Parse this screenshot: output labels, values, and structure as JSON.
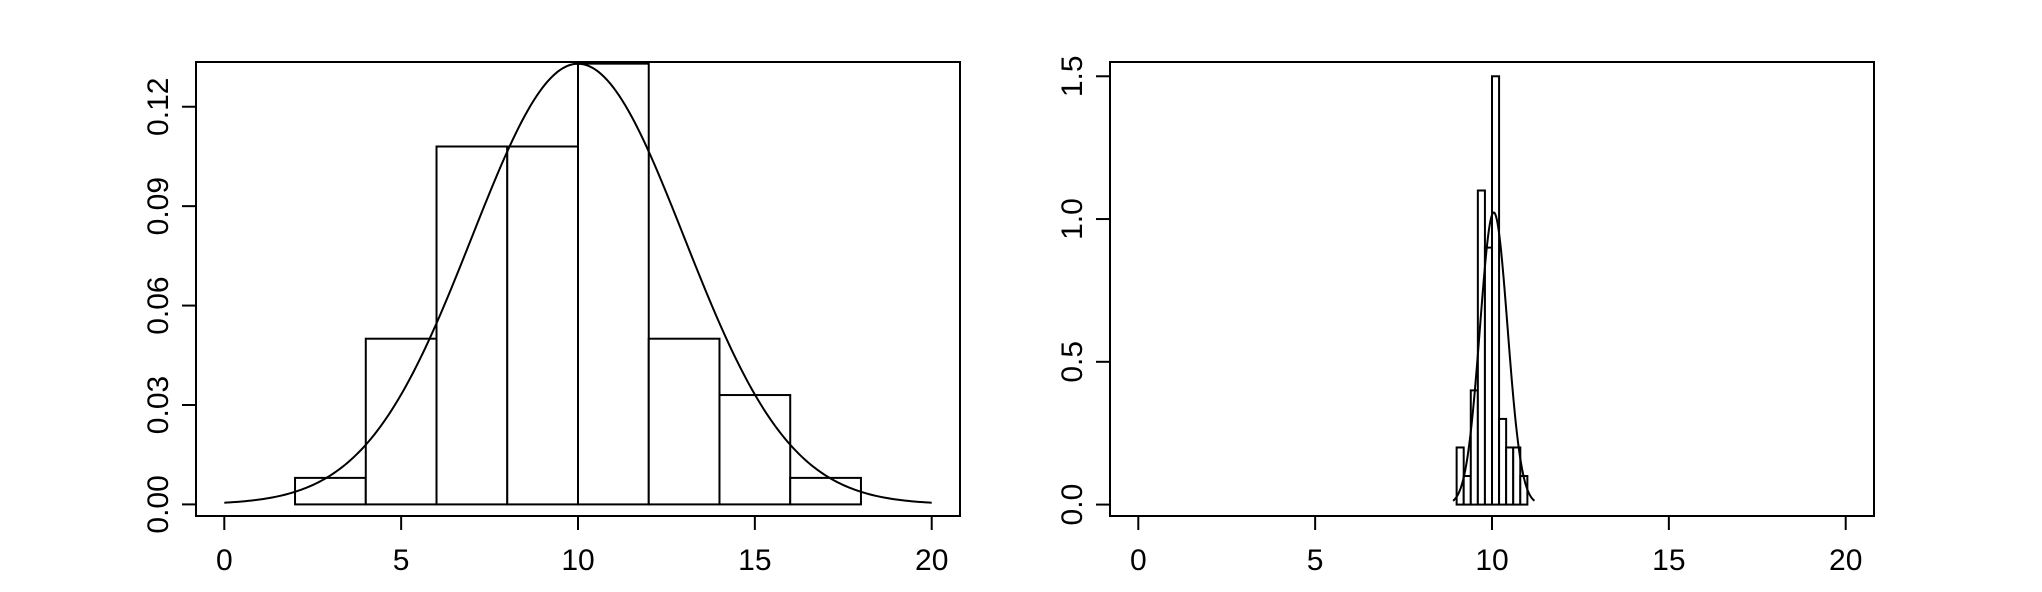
{
  "chart_data": [
    {
      "type": "bar",
      "title": "",
      "xlabel": "",
      "ylabel": "",
      "xlim": [
        -0.8,
        20.8
      ],
      "ylim": [
        -0.0035,
        0.1335
      ],
      "x_ticks": [
        0,
        5,
        10,
        15,
        20
      ],
      "x_tick_labels": [
        "0",
        "5",
        "10",
        "15",
        "20"
      ],
      "y_ticks": [
        0.0,
        0.03,
        0.06,
        0.09,
        0.12
      ],
      "y_tick_labels": [
        "0.00",
        "0.03",
        "0.06",
        "0.09",
        "0.12"
      ],
      "grid": false,
      "bins": [
        {
          "x0": 2,
          "x1": 4,
          "density": 0.008
        },
        {
          "x0": 4,
          "x1": 6,
          "density": 0.05
        },
        {
          "x0": 6,
          "x1": 8,
          "density": 0.108
        },
        {
          "x0": 8,
          "x1": 10,
          "density": 0.108
        },
        {
          "x0": 10,
          "x1": 12,
          "density": 0.133
        },
        {
          "x0": 12,
          "x1": 14,
          "density": 0.05
        },
        {
          "x0": 14,
          "x1": 16,
          "density": 0.033
        },
        {
          "x0": 16,
          "x1": 18,
          "density": 0.008
        }
      ],
      "density_curve": {
        "type": "normal",
        "mean": 10,
        "sd": 3.0,
        "x_range": [
          0,
          20
        ]
      }
    },
    {
      "type": "bar",
      "title": "",
      "xlabel": "",
      "ylabel": "",
      "xlim": [
        -0.8,
        20.8
      ],
      "ylim": [
        -0.04,
        1.55
      ],
      "x_ticks": [
        0,
        5,
        10,
        15,
        20
      ],
      "x_tick_labels": [
        "0",
        "5",
        "10",
        "15",
        "20"
      ],
      "y_ticks": [
        0.0,
        0.5,
        1.0,
        1.5
      ],
      "y_tick_labels": [
        "0.0",
        "0.5",
        "1.0",
        "1.5"
      ],
      "grid": false,
      "bins": [
        {
          "x0": 9.0,
          "x1": 9.2,
          "density": 0.2
        },
        {
          "x0": 9.2,
          "x1": 9.4,
          "density": 0.1
        },
        {
          "x0": 9.4,
          "x1": 9.6,
          "density": 0.4
        },
        {
          "x0": 9.6,
          "x1": 9.8,
          "density": 1.1
        },
        {
          "x0": 9.8,
          "x1": 10.0,
          "density": 0.9
        },
        {
          "x0": 10.0,
          "x1": 10.2,
          "density": 1.5
        },
        {
          "x0": 10.2,
          "x1": 10.4,
          "density": 0.3
        },
        {
          "x0": 10.4,
          "x1": 10.6,
          "density": 0.2
        },
        {
          "x0": 10.6,
          "x1": 10.8,
          "density": 0.2
        },
        {
          "x0": 10.8,
          "x1": 11.0,
          "density": 0.1
        }
      ],
      "density_curve": {
        "type": "normal",
        "mean": 10.05,
        "sd": 0.39,
        "x_range": [
          8.9,
          11.2
        ]
      }
    }
  ]
}
